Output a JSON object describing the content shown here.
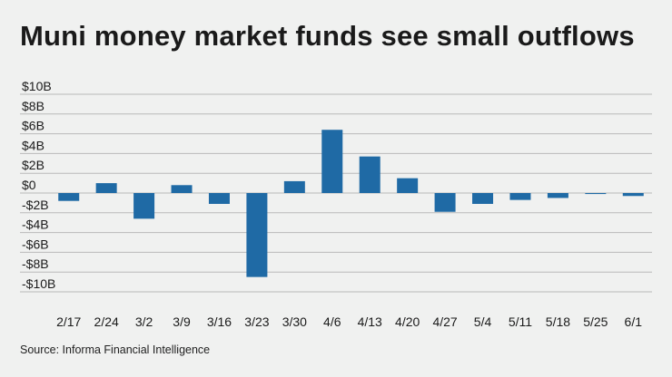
{
  "title": "Muni money market funds see small outflows",
  "source": "Source: Informa Financial Intelligence",
  "colors": {
    "bar": "#1f6aa5",
    "grid": "#b9b9b9",
    "background": "#f0f1f0"
  },
  "chart_data": {
    "type": "bar",
    "title": "Muni money market funds see small outflows",
    "xlabel": "",
    "ylabel": "",
    "categories": [
      "2/17",
      "2/24",
      "3/2",
      "3/9",
      "3/16",
      "3/23",
      "3/30",
      "4/6",
      "4/13",
      "4/20",
      "4/27",
      "5/4",
      "5/11",
      "5/18",
      "5/25",
      "6/1"
    ],
    "values": [
      -0.8,
      1.0,
      -2.6,
      0.8,
      -1.1,
      -8.5,
      1.2,
      6.4,
      3.7,
      1.5,
      -1.9,
      -1.1,
      -0.7,
      -0.5,
      -0.1,
      -0.3
    ],
    "units": "billions USD",
    "ylim": [
      -10,
      10
    ],
    "yticks": [
      10,
      8,
      6,
      4,
      2,
      0,
      -2,
      -4,
      -6,
      -8,
      -10
    ],
    "ytick_labels": [
      "$10B",
      "$8B",
      "$6B",
      "$4B",
      "$2B",
      "$0",
      "-$2B",
      "-$4B",
      "-$6B",
      "-$8B",
      "-$10B"
    ],
    "grid": true,
    "legend": false
  }
}
